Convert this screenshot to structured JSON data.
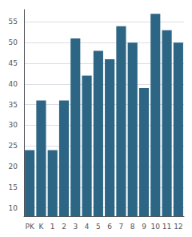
{
  "chart_data": {
    "type": "bar",
    "categories": [
      "PK",
      "K",
      "1",
      "2",
      "3",
      "4",
      "5",
      "6",
      "7",
      "8",
      "9",
      "10",
      "11",
      "12"
    ],
    "values": [
      24,
      36,
      24,
      36,
      51,
      42,
      48,
      46,
      54,
      50,
      39,
      57,
      53,
      50
    ],
    "color": "#2d6585",
    "ylim": [
      8,
      58
    ],
    "yticks": [
      10,
      15,
      20,
      25,
      30,
      35,
      40,
      45,
      50,
      55
    ],
    "grid": true
  }
}
